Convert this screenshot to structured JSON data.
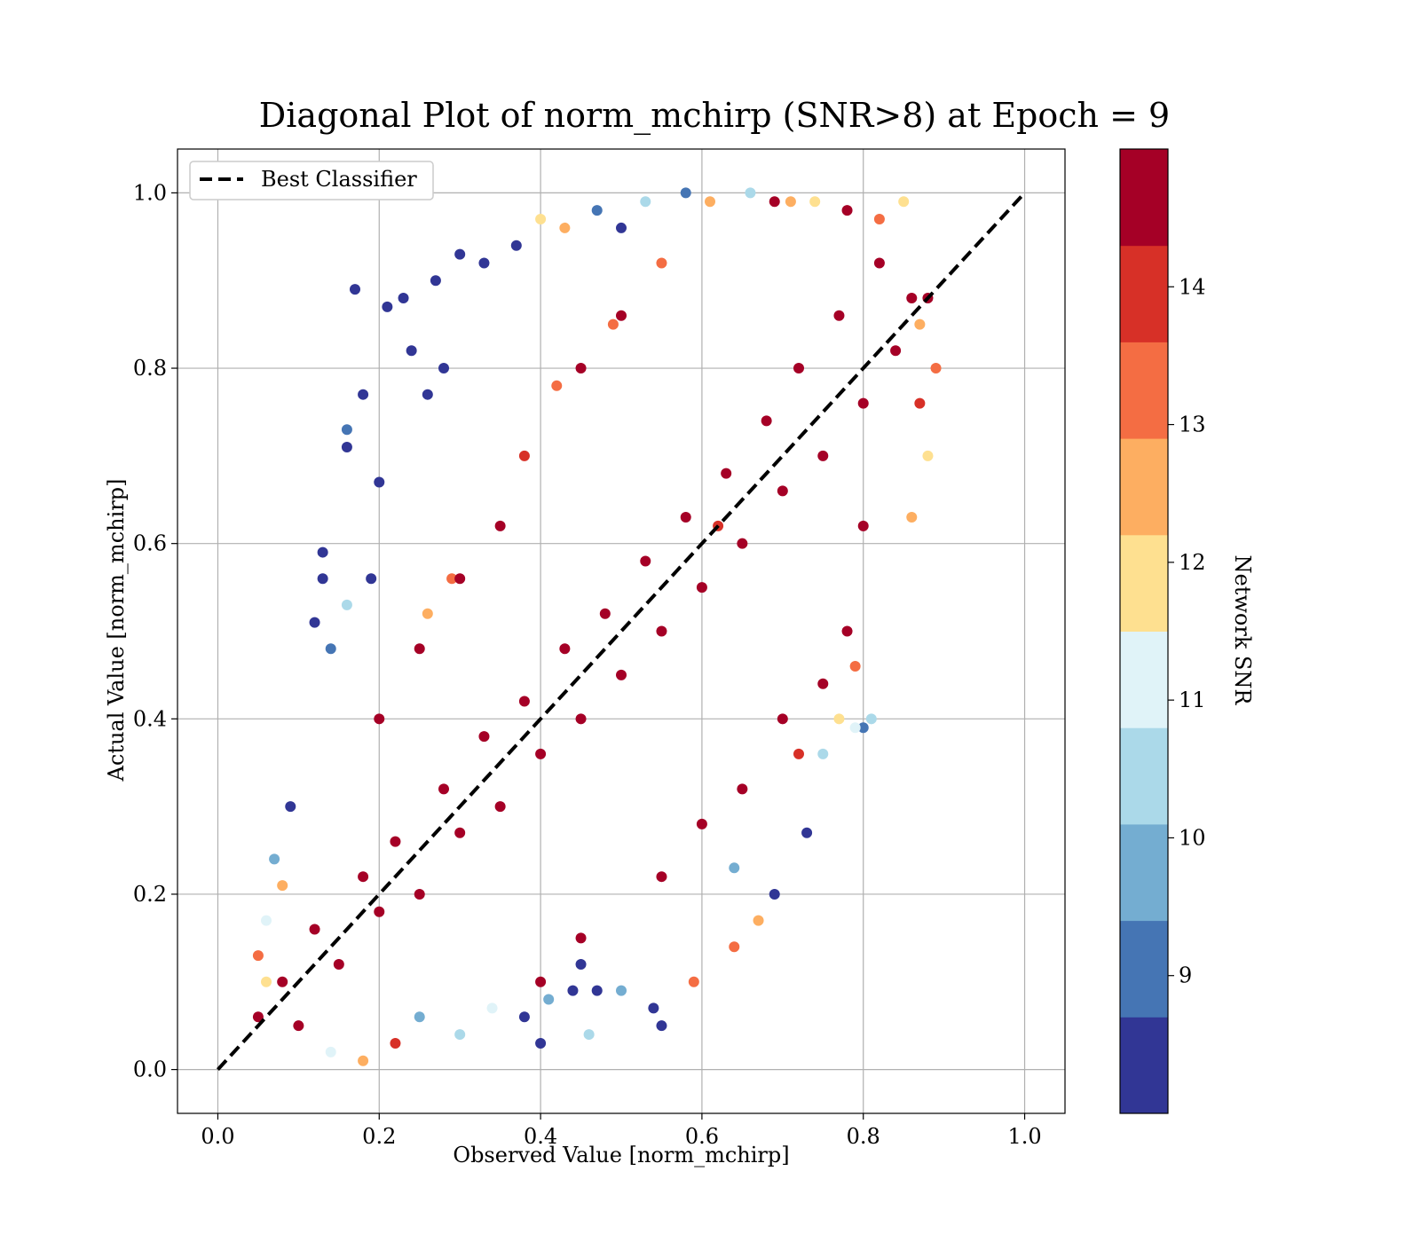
{
  "chart_data": {
    "type": "scatter",
    "title": "Diagonal Plot of norm_mchirp (SNR>8) at Epoch = 9",
    "xlabel": "Observed Value [norm_mchirp]",
    "ylabel": "Actual Value [norm_mchirp]",
    "xlim": [
      -0.05,
      1.05
    ],
    "ylim": [
      -0.05,
      1.05
    ],
    "x_ticks": [
      "0.0",
      "0.2",
      "0.4",
      "0.6",
      "0.8",
      "1.0"
    ],
    "y_ticks": [
      "0.0",
      "0.2",
      "0.4",
      "0.6",
      "0.8",
      "1.0"
    ],
    "grid": true,
    "legend": {
      "position": "top-left",
      "entries": [
        "Best Classifier"
      ]
    },
    "reference_line": {
      "name": "Best Classifier",
      "style": "dashed",
      "color": "#000000",
      "x": [
        0.0,
        1.0
      ],
      "y": [
        0.0,
        1.0
      ]
    },
    "colorbar": {
      "label": "Network SNR",
      "range": [
        8,
        15
      ],
      "ticks": [
        "9",
        "10",
        "11",
        "12",
        "13",
        "14"
      ],
      "colors": [
        "#313695",
        "#4575b4",
        "#74add1",
        "#abd9e9",
        "#e0f3f8",
        "#fee090",
        "#fdae61",
        "#f46d43",
        "#d73027",
        "#a50026"
      ]
    },
    "points_note_description": null,
    "points": [
      [
        0.05,
        0.06,
        14.8
      ],
      [
        0.08,
        0.1,
        14.9
      ],
      [
        0.1,
        0.05,
        14.7
      ],
      [
        0.12,
        0.16,
        14.9
      ],
      [
        0.15,
        0.12,
        14.8
      ],
      [
        0.18,
        0.22,
        14.9
      ],
      [
        0.2,
        0.18,
        14.9
      ],
      [
        0.22,
        0.26,
        14.9
      ],
      [
        0.25,
        0.2,
        14.8
      ],
      [
        0.28,
        0.32,
        14.9
      ],
      [
        0.3,
        0.27,
        14.9
      ],
      [
        0.33,
        0.38,
        14.9
      ],
      [
        0.35,
        0.3,
        14.9
      ],
      [
        0.38,
        0.42,
        14.9
      ],
      [
        0.4,
        0.36,
        14.9
      ],
      [
        0.43,
        0.48,
        14.9
      ],
      [
        0.45,
        0.4,
        14.9
      ],
      [
        0.48,
        0.52,
        14.9
      ],
      [
        0.5,
        0.45,
        14.9
      ],
      [
        0.53,
        0.58,
        14.9
      ],
      [
        0.55,
        0.5,
        14.9
      ],
      [
        0.58,
        0.63,
        14.9
      ],
      [
        0.6,
        0.55,
        14.9
      ],
      [
        0.63,
        0.68,
        14.9
      ],
      [
        0.65,
        0.6,
        14.9
      ],
      [
        0.68,
        0.74,
        14.9
      ],
      [
        0.7,
        0.66,
        14.9
      ],
      [
        0.72,
        0.8,
        14.9
      ],
      [
        0.75,
        0.7,
        14.9
      ],
      [
        0.77,
        0.86,
        14.9
      ],
      [
        0.8,
        0.76,
        14.9
      ],
      [
        0.82,
        0.92,
        14.9
      ],
      [
        0.84,
        0.82,
        14.8
      ],
      [
        0.86,
        0.88,
        14.7
      ],
      [
        0.88,
        0.88,
        14.9
      ],
      [
        0.69,
        0.99,
        14.8
      ],
      [
        0.78,
        0.98,
        14.7
      ],
      [
        0.8,
        0.62,
        14.9
      ],
      [
        0.78,
        0.5,
        14.8
      ],
      [
        0.75,
        0.44,
        14.8
      ],
      [
        0.7,
        0.4,
        14.7
      ],
      [
        0.2,
        0.4,
        14.8
      ],
      [
        0.25,
        0.48,
        14.6
      ],
      [
        0.3,
        0.56,
        14.7
      ],
      [
        0.35,
        0.62,
        14.8
      ],
      [
        0.45,
        0.8,
        14.6
      ],
      [
        0.5,
        0.86,
        14.5
      ],
      [
        0.55,
        0.22,
        14.7
      ],
      [
        0.6,
        0.28,
        14.6
      ],
      [
        0.65,
        0.32,
        14.7
      ],
      [
        0.45,
        0.15,
        14.6
      ],
      [
        0.4,
        0.1,
        14.5
      ],
      [
        0.17,
        0.89,
        8.3
      ],
      [
        0.21,
        0.87,
        8.2
      ],
      [
        0.23,
        0.88,
        8.4
      ],
      [
        0.27,
        0.9,
        8.1
      ],
      [
        0.3,
        0.93,
        8.5
      ],
      [
        0.33,
        0.92,
        8.3
      ],
      [
        0.37,
        0.94,
        8.2
      ],
      [
        0.24,
        0.82,
        8.6
      ],
      [
        0.28,
        0.8,
        8.2
      ],
      [
        0.26,
        0.77,
        8.3
      ],
      [
        0.18,
        0.77,
        8.1
      ],
      [
        0.16,
        0.73,
        9.2
      ],
      [
        0.16,
        0.71,
        8.2
      ],
      [
        0.2,
        0.67,
        8.3
      ],
      [
        0.13,
        0.59,
        8.1
      ],
      [
        0.13,
        0.56,
        8.2
      ],
      [
        0.19,
        0.56,
        8.4
      ],
      [
        0.12,
        0.51,
        8.3
      ],
      [
        0.16,
        0.53,
        10.6
      ],
      [
        0.14,
        0.48,
        9.1
      ],
      [
        0.69,
        0.2,
        8.2
      ],
      [
        0.73,
        0.27,
        8.1
      ],
      [
        0.64,
        0.23,
        9.6
      ],
      [
        0.54,
        0.07,
        8.3
      ],
      [
        0.46,
        0.04,
        10.2
      ],
      [
        0.55,
        0.05,
        8.4
      ],
      [
        0.4,
        0.03,
        8.2
      ],
      [
        0.5,
        0.09,
        9.8
      ],
      [
        0.47,
        0.09,
        8.5
      ],
      [
        0.45,
        0.12,
        8.6
      ],
      [
        0.44,
        0.09,
        8.1
      ],
      [
        0.38,
        0.06,
        8.3
      ],
      [
        0.41,
        0.08,
        9.4
      ],
      [
        0.81,
        0.4,
        10.3
      ],
      [
        0.79,
        0.39,
        10.8
      ],
      [
        0.77,
        0.4,
        11.5
      ],
      [
        0.8,
        0.39,
        9.2
      ],
      [
        0.75,
        0.36,
        10.5
      ],
      [
        0.4,
        0.97,
        11.7
      ],
      [
        0.43,
        0.96,
        12.5
      ],
      [
        0.47,
        0.98,
        9.3
      ],
      [
        0.5,
        0.96,
        8.6
      ],
      [
        0.53,
        0.99,
        10.7
      ],
      [
        0.58,
        1.0,
        9.2
      ],
      [
        0.61,
        0.99,
        12.6
      ],
      [
        0.66,
        1.0,
        10.2
      ],
      [
        0.71,
        0.99,
        12.4
      ],
      [
        0.74,
        0.99,
        11.8
      ],
      [
        0.85,
        0.99,
        12.1
      ],
      [
        0.82,
        0.97,
        13.3
      ],
      [
        0.09,
        0.3,
        8.6
      ],
      [
        0.07,
        0.24,
        9.7
      ],
      [
        0.08,
        0.21,
        12.6
      ],
      [
        0.06,
        0.17,
        10.8
      ],
      [
        0.05,
        0.13,
        12.9
      ],
      [
        0.06,
        0.1,
        11.6
      ],
      [
        0.34,
        0.07,
        11.3
      ],
      [
        0.3,
        0.04,
        10.7
      ],
      [
        0.25,
        0.06,
        9.5
      ],
      [
        0.22,
        0.03,
        13.7
      ],
      [
        0.18,
        0.01,
        12.7
      ],
      [
        0.14,
        0.02,
        11.4
      ],
      [
        0.86,
        0.63,
        12.4
      ],
      [
        0.88,
        0.7,
        11.5
      ],
      [
        0.87,
        0.76,
        13.7
      ],
      [
        0.89,
        0.8,
        13.2
      ],
      [
        0.87,
        0.85,
        12.6
      ],
      [
        0.62,
        0.62,
        14.1
      ],
      [
        0.64,
        0.14,
        13.4
      ],
      [
        0.67,
        0.17,
        12.8
      ],
      [
        0.59,
        0.1,
        13.6
      ],
      [
        0.29,
        0.56,
        13.3
      ],
      [
        0.26,
        0.52,
        12.4
      ],
      [
        0.38,
        0.7,
        13.8
      ],
      [
        0.42,
        0.78,
        12.9
      ],
      [
        0.49,
        0.85,
        13.1
      ],
      [
        0.55,
        0.92,
        13.6
      ],
      [
        0.72,
        0.36,
        13.9
      ],
      [
        0.79,
        0.46,
        13.2
      ]
    ]
  }
}
